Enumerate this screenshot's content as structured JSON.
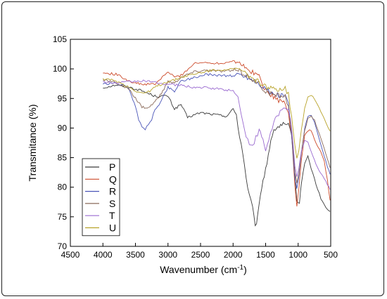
{
  "chart_data": {
    "type": "line",
    "title": "",
    "xlabel_main": "Wavenumber (cm",
    "xlabel_sup": "-1",
    "xlabel_end": ")",
    "ylabel": "Transmitance (%)",
    "xlim": [
      4500,
      500
    ],
    "ylim": [
      70,
      105
    ],
    "xticks": [
      "4500",
      "4000",
      "3500",
      "3000",
      "2500",
      "2000",
      "1500",
      "1000",
      "500"
    ],
    "yticks": [
      "70",
      "75",
      "80",
      "85",
      "90",
      "95",
      "100",
      "105"
    ],
    "grid": false,
    "legend_position": "bottom-left",
    "series": [
      {
        "name": "P",
        "color": "#3a3a3a",
        "points": [
          [
            4000,
            96.8
          ],
          [
            3800,
            97.3
          ],
          [
            3600,
            96.9
          ],
          [
            3400,
            96.3
          ],
          [
            3200,
            95.4
          ],
          [
            3000,
            95.4
          ],
          [
            2900,
            93.2
          ],
          [
            2800,
            94.0
          ],
          [
            2700,
            91.8
          ],
          [
            2500,
            92.6
          ],
          [
            2300,
            92.3
          ],
          [
            2100,
            92.0
          ],
          [
            2000,
            93.2
          ],
          [
            1950,
            92.3
          ],
          [
            1900,
            88.6
          ],
          [
            1850,
            85.9
          ],
          [
            1800,
            81.5
          ],
          [
            1750,
            78.6
          ],
          [
            1700,
            76.5
          ],
          [
            1660,
            73.2
          ],
          [
            1620,
            75.1
          ],
          [
            1560,
            80.1
          ],
          [
            1480,
            84.1
          ],
          [
            1420,
            88.1
          ],
          [
            1350,
            89.9
          ],
          [
            1250,
            90.6
          ],
          [
            1150,
            90.4
          ],
          [
            1100,
            88.6
          ],
          [
            1050,
            82.2
          ],
          [
            1020,
            77.6
          ],
          [
            980,
            77.3
          ],
          [
            950,
            80.8
          ],
          [
            900,
            84.1
          ],
          [
            850,
            85.2
          ],
          [
            800,
            83.2
          ],
          [
            750,
            81.4
          ],
          [
            700,
            79.6
          ],
          [
            650,
            78.1
          ],
          [
            600,
            77.0
          ],
          [
            550,
            76.2
          ],
          [
            510,
            75.9
          ]
        ]
      },
      {
        "name": "Q",
        "color": "#cc4a2a",
        "points": [
          [
            4000,
            99.3
          ],
          [
            3800,
            99.1
          ],
          [
            3600,
            98.0
          ],
          [
            3500,
            97.6
          ],
          [
            3400,
            97.4
          ],
          [
            3200,
            97.4
          ],
          [
            3000,
            99.5
          ],
          [
            2900,
            98.6
          ],
          [
            2800,
            98.9
          ],
          [
            2600,
            100.9
          ],
          [
            2400,
            101.1
          ],
          [
            2200,
            100.9
          ],
          [
            2000,
            101.4
          ],
          [
            1900,
            101.1
          ],
          [
            1800,
            99.9
          ],
          [
            1700,
            99.5
          ],
          [
            1600,
            98.7
          ],
          [
            1500,
            96.4
          ],
          [
            1400,
            95.5
          ],
          [
            1300,
            94.7
          ],
          [
            1200,
            94.2
          ],
          [
            1150,
            92.3
          ],
          [
            1100,
            88.9
          ],
          [
            1050,
            80.2
          ],
          [
            1020,
            76.8
          ],
          [
            990,
            79.7
          ],
          [
            950,
            84.7
          ],
          [
            900,
            88.7
          ],
          [
            850,
            89.6
          ],
          [
            800,
            89.6
          ],
          [
            750,
            88.1
          ],
          [
            700,
            86.8
          ],
          [
            650,
            85.9
          ],
          [
            600,
            84.4
          ],
          [
            550,
            81.1
          ],
          [
            510,
            77.8
          ]
        ]
      },
      {
        "name": "R",
        "color": "#4a55b8",
        "points": [
          [
            4000,
            97.4
          ],
          [
            3800,
            97.6
          ],
          [
            3600,
            96.8
          ],
          [
            3500,
            93.5
          ],
          [
            3450,
            91.5
          ],
          [
            3400,
            90.3
          ],
          [
            3350,
            89.9
          ],
          [
            3300,
            90.5
          ],
          [
            3250,
            91.5
          ],
          [
            3200,
            93.0
          ],
          [
            3100,
            94.7
          ],
          [
            3000,
            96.9
          ],
          [
            2900,
            96.2
          ],
          [
            2800,
            98.0
          ],
          [
            2600,
            98.5
          ],
          [
            2400,
            99.1
          ],
          [
            2200,
            98.9
          ],
          [
            2000,
            98.8
          ],
          [
            1900,
            99.1
          ],
          [
            1800,
            98.7
          ],
          [
            1700,
            98.1
          ],
          [
            1600,
            97.5
          ],
          [
            1500,
            96.6
          ],
          [
            1400,
            95.7
          ],
          [
            1300,
            95.5
          ],
          [
            1200,
            95.5
          ],
          [
            1150,
            93.9
          ],
          [
            1100,
            88.5
          ],
          [
            1050,
            81.5
          ],
          [
            1020,
            79.8
          ],
          [
            990,
            81.8
          ],
          [
            950,
            86.0
          ],
          [
            900,
            89.8
          ],
          [
            850,
            92.0
          ],
          [
            800,
            92.3
          ],
          [
            750,
            90.9
          ],
          [
            700,
            89.0
          ],
          [
            650,
            87.0
          ],
          [
            600,
            85.2
          ],
          [
            550,
            83.5
          ],
          [
            510,
            82.2
          ]
        ]
      },
      {
        "name": "S",
        "color": "#8a6a5a",
        "points": [
          [
            4000,
            98.1
          ],
          [
            3800,
            97.7
          ],
          [
            3600,
            96.5
          ],
          [
            3500,
            95.0
          ],
          [
            3400,
            93.6
          ],
          [
            3300,
            93.4
          ],
          [
            3200,
            94.5
          ],
          [
            3100,
            95.8
          ],
          [
            3000,
            97.9
          ],
          [
            2900,
            97.6
          ],
          [
            2800,
            98.6
          ],
          [
            2600,
            99.5
          ],
          [
            2400,
            99.8
          ],
          [
            2200,
            99.6
          ],
          [
            2000,
            99.7
          ],
          [
            1900,
            99.6
          ],
          [
            1800,
            98.9
          ],
          [
            1700,
            98.2
          ],
          [
            1600,
            97.4
          ],
          [
            1500,
            96.2
          ],
          [
            1400,
            95.6
          ],
          [
            1300,
            95.5
          ],
          [
            1200,
            95.4
          ],
          [
            1150,
            93.6
          ],
          [
            1100,
            89.2
          ],
          [
            1050,
            82.6
          ],
          [
            1020,
            80.6
          ],
          [
            990,
            82.2
          ],
          [
            950,
            86.1
          ],
          [
            900,
            89.5
          ],
          [
            850,
            91.7
          ],
          [
            800,
            92.1
          ],
          [
            750,
            91.3
          ],
          [
            700,
            89.9
          ],
          [
            650,
            88.1
          ],
          [
            600,
            86.5
          ],
          [
            550,
            84.9
          ],
          [
            510,
            83.3
          ]
        ]
      },
      {
        "name": "T",
        "color": "#9a6ad0",
        "points": [
          [
            4000,
            97.8
          ],
          [
            3800,
            97.6
          ],
          [
            3600,
            97.8
          ],
          [
            3400,
            98.0
          ],
          [
            3200,
            97.7
          ],
          [
            3000,
            97.4
          ],
          [
            2800,
            97.2
          ],
          [
            2600,
            96.9
          ],
          [
            2400,
            96.8
          ],
          [
            2200,
            96.6
          ],
          [
            2000,
            96.3
          ],
          [
            1950,
            96.0
          ],
          [
            1900,
            94.1
          ],
          [
            1850,
            90.9
          ],
          [
            1800,
            88.4
          ],
          [
            1750,
            87.5
          ],
          [
            1700,
            87.1
          ],
          [
            1650,
            88.3
          ],
          [
            1600,
            89.5
          ],
          [
            1560,
            88.6
          ],
          [
            1500,
            86.2
          ],
          [
            1450,
            88.1
          ],
          [
            1400,
            90.0
          ],
          [
            1350,
            91.6
          ],
          [
            1300,
            92.5
          ],
          [
            1250,
            92.9
          ],
          [
            1200,
            93.4
          ],
          [
            1150,
            93.4
          ],
          [
            1120,
            91.7
          ],
          [
            1080,
            87.5
          ],
          [
            1050,
            83.6
          ],
          [
            1020,
            81.7
          ],
          [
            990,
            83.1
          ],
          [
            950,
            86.1
          ],
          [
            900,
            88.0
          ],
          [
            850,
            87.6
          ],
          [
            800,
            86.0
          ],
          [
            750,
            84.5
          ],
          [
            700,
            83.3
          ],
          [
            650,
            82.4
          ],
          [
            600,
            81.5
          ],
          [
            550,
            80.4
          ],
          [
            510,
            79.6
          ]
        ]
      },
      {
        "name": "U",
        "color": "#b8a32a",
        "points": [
          [
            4000,
            98.3
          ],
          [
            3800,
            98.0
          ],
          [
            3600,
            96.9
          ],
          [
            3500,
            96.3
          ],
          [
            3400,
            95.9
          ],
          [
            3300,
            96.1
          ],
          [
            3200,
            96.9
          ],
          [
            3100,
            97.4
          ],
          [
            3000,
            97.9
          ],
          [
            2900,
            98.1
          ],
          [
            2800,
            98.6
          ],
          [
            2600,
            99.1
          ],
          [
            2400,
            99.6
          ],
          [
            2200,
            99.9
          ],
          [
            2000,
            99.9
          ],
          [
            1900,
            99.9
          ],
          [
            1800,
            99.1
          ],
          [
            1700,
            98.4
          ],
          [
            1600,
            97.8
          ],
          [
            1500,
            97.0
          ],
          [
            1400,
            96.6
          ],
          [
            1300,
            96.6
          ],
          [
            1200,
            96.8
          ],
          [
            1150,
            95.6
          ],
          [
            1100,
            92.0
          ],
          [
            1050,
            87.0
          ],
          [
            1020,
            85.0
          ],
          [
            990,
            86.2
          ],
          [
            950,
            89.8
          ],
          [
            900,
            93.4
          ],
          [
            850,
            95.2
          ],
          [
            800,
            95.6
          ],
          [
            750,
            95.0
          ],
          [
            700,
            93.9
          ],
          [
            650,
            92.8
          ],
          [
            600,
            91.6
          ],
          [
            550,
            90.4
          ],
          [
            510,
            89.5
          ]
        ]
      }
    ]
  }
}
